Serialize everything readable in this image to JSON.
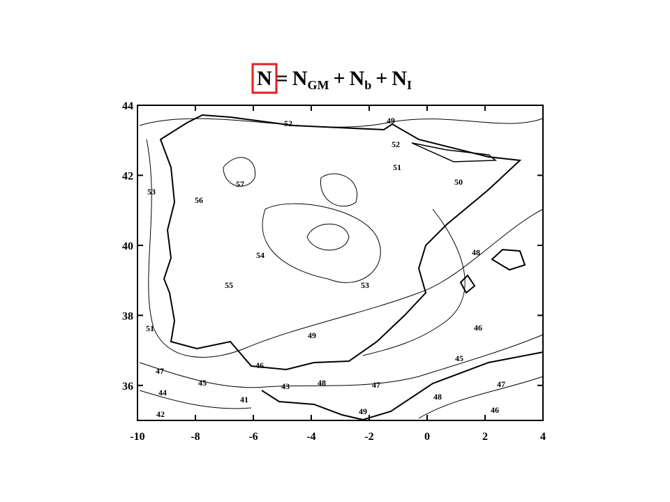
{
  "title": {
    "parts": [
      {
        "text": "N",
        "kind": "main"
      },
      {
        "text": "=",
        "kind": "main"
      },
      {
        "text": "N",
        "kind": "main"
      },
      {
        "text": "GM",
        "kind": "sub"
      },
      {
        "text": "+",
        "kind": "main"
      },
      {
        "text": "N",
        "kind": "main"
      },
      {
        "text": "b",
        "kind": "sub"
      },
      {
        "text": "+",
        "kind": "main"
      },
      {
        "text": "N",
        "kind": "main"
      },
      {
        "text": "I",
        "kind": "sub"
      }
    ],
    "highlight_color": "#e02020"
  },
  "map": {
    "xlim": [
      -10,
      4
    ],
    "ylim": [
      35,
      44
    ],
    "xticks": [
      -10,
      -8,
      -6,
      -4,
      -2,
      0,
      2,
      4
    ],
    "yticks": [
      36,
      38,
      40,
      42,
      44
    ],
    "contour_labels": [
      52,
      49,
      52,
      51,
      57,
      50,
      53,
      56,
      48,
      54,
      53,
      55,
      51,
      49,
      46,
      45,
      47,
      46,
      45,
      43,
      48,
      47,
      47,
      44,
      41,
      48,
      49,
      46,
      42
    ]
  }
}
